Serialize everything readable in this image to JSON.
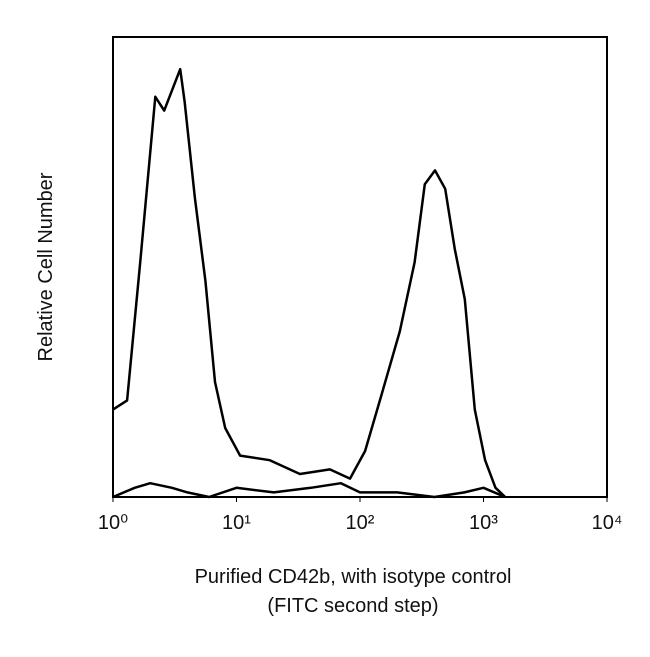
{
  "chart_data": {
    "type": "line",
    "x_label": [
      "Purified CD42b, with isotype control",
      "(FITC second step)"
    ],
    "y_label": "Relative Cell Number",
    "xscale": "log",
    "xlim": [
      1,
      10000
    ],
    "xticks": [
      {
        "value": 1,
        "label": "10⁰"
      },
      {
        "value": 10,
        "label": "10¹"
      },
      {
        "value": 100,
        "label": "10²"
      },
      {
        "value": 1000,
        "label": "10³"
      },
      {
        "value": 10000,
        "label": "10⁴"
      }
    ],
    "ylim": [
      0,
      100
    ],
    "series": [
      {
        "color": "#000000",
        "x": [
          1,
          1.3,
          1.66,
          2.2,
          2.6,
          3.5,
          3.8,
          4.6,
          5.6,
          6.7,
          8.1,
          10.7,
          18.6,
          32.6,
          57,
          83,
          110,
          145,
          210,
          277,
          335,
          405,
          490,
          585,
          705,
          850,
          1030,
          1250,
          1500
        ],
        "values": [
          19,
          21,
          51,
          87,
          84,
          93,
          86,
          65,
          47,
          25,
          15,
          9,
          8,
          5,
          6,
          4,
          10,
          21,
          36,
          51,
          68,
          71,
          67,
          54,
          43,
          19,
          8,
          2,
          0
        ]
      },
      {
        "color": "#000000",
        "x": [
          1,
          1.5,
          2,
          3,
          4,
          6,
          10,
          20,
          40,
          70,
          100,
          200,
          400,
          700,
          1000,
          1500
        ],
        "values": [
          0,
          2,
          3,
          2,
          1,
          0,
          2,
          1,
          2,
          3,
          1,
          1,
          0,
          1,
          2,
          0
        ]
      }
    ]
  }
}
